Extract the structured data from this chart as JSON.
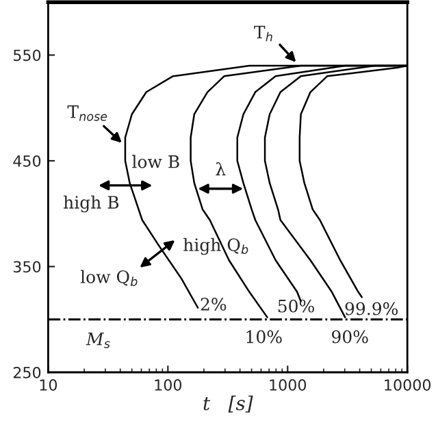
{
  "chart_data": {
    "type": "line",
    "xlabel": "t   [s]",
    "log": "x",
    "xlim": [
      10,
      10000
    ],
    "xticks": [
      10,
      100,
      1000,
      10000
    ],
    "ylim": [
      250,
      600
    ],
    "yticks": [
      250,
      350,
      450,
      550
    ],
    "grid": false,
    "legend": false,
    "marker": "none",
    "line_style": "solid",
    "series": [
      {
        "color": "#000000",
        "x": [
          178,
          129,
          85,
          61,
          57,
          48,
          44,
          44,
          50,
          66,
          110,
          480,
          10000
        ],
        "values": [
          311,
          339,
          369,
          394,
          404,
          429,
          450,
          472,
          494,
          515,
          530,
          540,
          540
        ]
      },
      {
        "color": "#000000",
        "x": [
          676,
          479,
          324,
          224,
          195,
          166,
          155,
          155,
          166,
          214,
          295,
          1290,
          10000
        ],
        "values": [
          302,
          326,
          356,
          394,
          404,
          429,
          450,
          472,
          494,
          515,
          530,
          540,
          540
        ]
      },
      {
        "color": "#000000",
        "x": [
          1290,
          1200,
          794,
          537,
          501,
          427,
          380,
          380,
          427,
          537,
          794,
          3020,
          10000
        ],
        "values": [
          317,
          326,
          356,
          394,
          404,
          429,
          450,
          472,
          494,
          515,
          530,
          540,
          540
        ]
      },
      {
        "color": "#000000",
        "x": [
          3020,
          2340,
          1550,
          871,
          832,
          708,
          646,
          646,
          708,
          871,
          1290,
          5370,
          10000
        ],
        "values": [
          302,
          326,
          356,
          394,
          404,
          429,
          450,
          472,
          494,
          515,
          530,
          540,
          540
        ]
      },
      {
        "color": "#000000",
        "x": [
          4170,
          3890,
          2750,
          1860,
          1620,
          1380,
          1260,
          1260,
          1290,
          1550,
          2140,
          8130,
          10000
        ],
        "values": [
          321,
          326,
          356,
          394,
          404,
          429,
          450,
          472,
          494,
          515,
          530,
          538,
          540
        ]
      }
    ],
    "ref_lines": [
      {
        "axis": "y",
        "value": 300,
        "label": "M$_{s}$",
        "color": "#000000",
        "line_style": "dashdot"
      }
    ],
    "annotations": [
      "T$_{h}$",
      "T$_{nose}$",
      "low B",
      "high B",
      "λ",
      "high Q$_{b}$",
      "low Q$_{b}$",
      "2%",
      "10%",
      "50%",
      "90%",
      "99.9%"
    ]
  }
}
